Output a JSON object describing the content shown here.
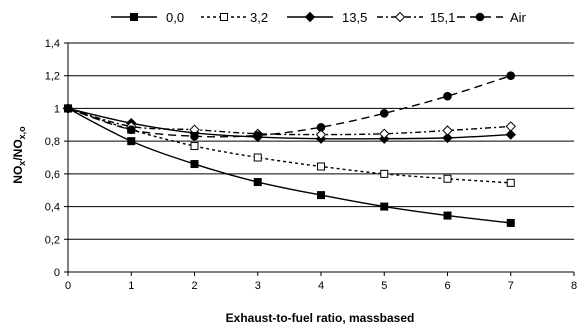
{
  "chart_data": {
    "type": "line",
    "xlabel": "Exhaust-to-fuel ratio, massbased",
    "ylabel_main": "NO",
    "ylabel_sub1": "x",
    "ylabel_sep": "/NO",
    "ylabel_sub2": "x,o",
    "xlim": [
      0,
      8
    ],
    "ylim": [
      0,
      1.4
    ],
    "x_ticks": [
      0,
      1,
      2,
      3,
      4,
      5,
      6,
      7,
      8
    ],
    "y_ticks": [
      0,
      0.2,
      0.4,
      0.6,
      0.8,
      1.0,
      1.2,
      1.4
    ],
    "x_tick_labels": [
      "0",
      "1",
      "2",
      "3",
      "4",
      "5",
      "6",
      "7",
      "8"
    ],
    "y_tick_labels": [
      "0",
      "0,2",
      "0,4",
      "0,6",
      "0,8",
      "1",
      "1,2",
      "1,4"
    ],
    "grid": "horizontal",
    "legend_position": "top",
    "series": [
      {
        "name": "0,0",
        "marker": "filled-square",
        "dash": "solid",
        "x": [
          0,
          1,
          2,
          3,
          4,
          5,
          6,
          7
        ],
        "values": [
          1.0,
          0.8,
          0.66,
          0.55,
          0.47,
          0.4,
          0.345,
          0.3
        ]
      },
      {
        "name": "3,2",
        "marker": "open-square",
        "dash": "short-dash",
        "x": [
          0,
          1,
          2,
          3,
          4,
          5,
          6,
          7
        ],
        "values": [
          1.0,
          0.87,
          0.77,
          0.7,
          0.645,
          0.6,
          0.57,
          0.545
        ]
      },
      {
        "name": "13,5",
        "marker": "filled-diamond",
        "dash": "solid",
        "x": [
          0,
          1,
          2,
          3,
          4,
          5,
          6,
          7
        ],
        "values": [
          1.0,
          0.91,
          0.85,
          0.825,
          0.815,
          0.815,
          0.82,
          0.84
        ]
      },
      {
        "name": "15,1",
        "marker": "open-diamond",
        "dash": "dash-dot",
        "x": [
          0,
          1,
          2,
          3,
          4,
          5,
          6,
          7
        ],
        "values": [
          1.0,
          0.89,
          0.87,
          0.845,
          0.84,
          0.845,
          0.865,
          0.89
        ]
      },
      {
        "name": "Air",
        "marker": "filled-circle",
        "dash": "long-dash",
        "x": [
          0,
          1,
          2,
          3,
          4,
          5,
          6,
          7
        ],
        "values": [
          1.0,
          0.87,
          0.83,
          0.835,
          0.885,
          0.97,
          1.075,
          1.2
        ]
      }
    ]
  }
}
